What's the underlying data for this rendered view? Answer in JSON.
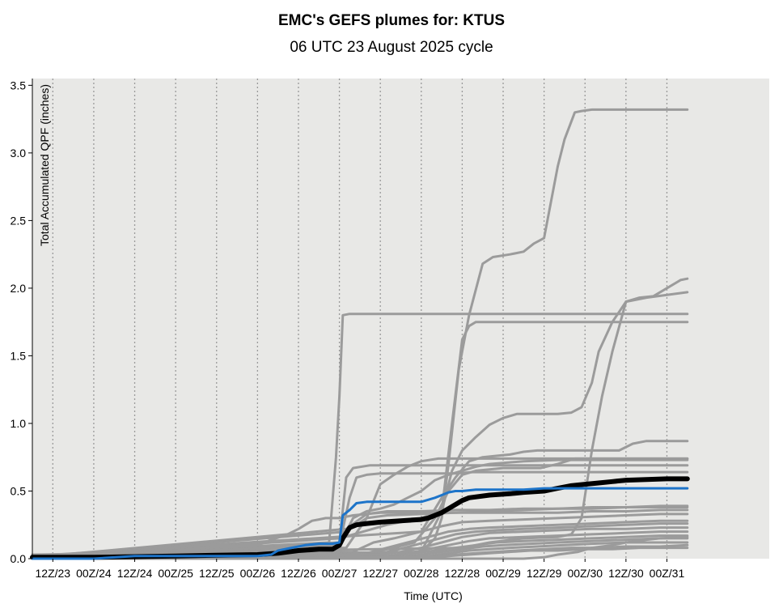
{
  "chart_data": {
    "type": "line",
    "title": "EMC's GEFS plumes for: KTUS",
    "subtitle": "06 UTC 23 August 2025 cycle",
    "xlabel": "Time (UTC)",
    "ylabel": "Total Accumulated QPF (inches)",
    "xlim": [
      6,
      222
    ],
    "ylim": [
      0,
      3.55
    ],
    "x_unit": "hours after 00 UTC 23 August 2025",
    "x_ticks": [
      {
        "value": 12,
        "label": "12Z/23"
      },
      {
        "value": 24,
        "label": "00Z/24"
      },
      {
        "value": 36,
        "label": "12Z/24"
      },
      {
        "value": 48,
        "label": "00Z/25"
      },
      {
        "value": 60,
        "label": "12Z/25"
      },
      {
        "value": 72,
        "label": "00Z/26"
      },
      {
        "value": 84,
        "label": "12Z/26"
      },
      {
        "value": 96,
        "label": "00Z/27"
      },
      {
        "value": 108,
        "label": "12Z/27"
      },
      {
        "value": 120,
        "label": "00Z/28"
      },
      {
        "value": 132,
        "label": "12Z/28"
      },
      {
        "value": 144,
        "label": "00Z/29"
      },
      {
        "value": 156,
        "label": "12Z/29"
      },
      {
        "value": 168,
        "label": "00Z/30"
      },
      {
        "value": 180,
        "label": "12Z/30"
      },
      {
        "value": 192,
        "label": "00Z/31"
      }
    ],
    "y_ticks": [
      {
        "value": 0.0,
        "label": "0.0"
      },
      {
        "value": 0.5,
        "label": "0.5"
      },
      {
        "value": 1.0,
        "label": "1.0"
      },
      {
        "value": 1.5,
        "label": "1.5"
      },
      {
        "value": 2.0,
        "label": "2.0"
      },
      {
        "value": 2.5,
        "label": "2.5"
      },
      {
        "value": 3.0,
        "label": "3.0"
      },
      {
        "value": 3.5,
        "label": "3.5"
      }
    ],
    "grid": true,
    "colors": {
      "plot_bg": "#e8e8e6",
      "grid": "#9a9a9a",
      "member": "#9b9b9b",
      "mean": "#000000",
      "control": "#1d74c9"
    },
    "members": [
      {
        "x": [
          6,
          93,
          95,
          96,
          97,
          99,
          198
        ],
        "y": [
          0.01,
          0.12,
          0.75,
          1.2,
          1.8,
          1.81,
          1.81
        ]
      },
      {
        "x": [
          6,
          120,
          124,
          126,
          128,
          131,
          134,
          138,
          141,
          146,
          150,
          153,
          156,
          160,
          162,
          165,
          167,
          170,
          198
        ],
        "y": [
          0.01,
          0.05,
          0.15,
          0.3,
          0.7,
          1.4,
          1.8,
          2.18,
          2.23,
          2.25,
          2.27,
          2.33,
          2.37,
          2.9,
          3.1,
          3.3,
          3.31,
          3.32,
          3.32
        ]
      },
      {
        "x": [
          6,
          120,
          126,
          129,
          132,
          134,
          136,
          140,
          150,
          160,
          170,
          198
        ],
        "y": [
          0.01,
          0.05,
          0.35,
          1.0,
          1.62,
          1.72,
          1.75,
          1.75,
          1.75,
          1.75,
          1.75,
          1.75
        ]
      },
      {
        "x": [
          6,
          132,
          140,
          150,
          160,
          164,
          167,
          170,
          173,
          176,
          180,
          184,
          188,
          192,
          196,
          198
        ],
        "y": [
          0.03,
          0.08,
          0.12,
          0.15,
          0.16,
          0.18,
          0.3,
          0.8,
          1.2,
          1.53,
          1.9,
          1.93,
          1.94,
          2.0,
          2.06,
          2.07
        ]
      },
      {
        "x": [
          6,
          96,
          110,
          120,
          126,
          129,
          132,
          136,
          140,
          144,
          148,
          154,
          160,
          164,
          167,
          170,
          172,
          176,
          180,
          186,
          198
        ],
        "y": [
          0.01,
          0.15,
          0.25,
          0.3,
          0.35,
          0.65,
          0.8,
          0.9,
          0.99,
          1.04,
          1.07,
          1.07,
          1.07,
          1.08,
          1.12,
          1.3,
          1.53,
          1.75,
          1.9,
          1.93,
          1.97
        ]
      },
      {
        "x": [
          6,
          120,
          126,
          130,
          134,
          138,
          142,
          146,
          150,
          154,
          158,
          162,
          166,
          170,
          174,
          178,
          182,
          186,
          190,
          198
        ],
        "y": [
          0.02,
          0.2,
          0.45,
          0.6,
          0.72,
          0.75,
          0.76,
          0.77,
          0.79,
          0.8,
          0.8,
          0.8,
          0.8,
          0.8,
          0.8,
          0.8,
          0.85,
          0.87,
          0.87,
          0.87
        ]
      },
      {
        "x": [
          6,
          96,
          98,
          100,
          105,
          110,
          120,
          130,
          140,
          150,
          160,
          170,
          180,
          190,
          198
        ],
        "y": [
          0.01,
          0.12,
          0.6,
          0.67,
          0.69,
          0.69,
          0.69,
          0.69,
          0.69,
          0.69,
          0.69,
          0.69,
          0.69,
          0.69,
          0.69
        ]
      },
      {
        "x": [
          6,
          96,
          99,
          101,
          104,
          108,
          118,
          125,
          130,
          135,
          140,
          150,
          160,
          170,
          180,
          190,
          198
        ],
        "y": [
          0.01,
          0.1,
          0.45,
          0.6,
          0.62,
          0.63,
          0.63,
          0.63,
          0.63,
          0.64,
          0.64,
          0.64,
          0.64,
          0.64,
          0.64,
          0.64,
          0.64
        ]
      },
      {
        "x": [
          6,
          96,
          100,
          104,
          108,
          112,
          116,
          120,
          124,
          128,
          132,
          136,
          140,
          150,
          160,
          170,
          180,
          190,
          198
        ],
        "y": [
          0.01,
          0.1,
          0.3,
          0.35,
          0.37,
          0.4,
          0.45,
          0.5,
          0.58,
          0.62,
          0.65,
          0.68,
          0.7,
          0.72,
          0.73,
          0.73,
          0.73,
          0.73,
          0.73
        ]
      },
      {
        "x": [
          6,
          98,
          104,
          108,
          112,
          116,
          120,
          125,
          130,
          140,
          150,
          160,
          170,
          180,
          190,
          198
        ],
        "y": [
          0.01,
          0.08,
          0.3,
          0.55,
          0.62,
          0.68,
          0.72,
          0.74,
          0.74,
          0.74,
          0.74,
          0.74,
          0.74,
          0.74,
          0.74,
          0.74
        ]
      },
      {
        "x": [
          6,
          100,
          106,
          112,
          118,
          124,
          128,
          132,
          136,
          140,
          144,
          150,
          155,
          160,
          165,
          170,
          180,
          190,
          198
        ],
        "y": [
          0.01,
          0.02,
          0.05,
          0.08,
          0.12,
          0.3,
          0.5,
          0.62,
          0.65,
          0.66,
          0.67,
          0.67,
          0.67,
          0.7,
          0.74,
          0.74,
          0.74,
          0.74,
          0.74
        ]
      },
      {
        "x": [
          6,
          33,
          36,
          48,
          60,
          72,
          76,
          80,
          84,
          86,
          88,
          90,
          92,
          96,
          98,
          100,
          104,
          108,
          112,
          120,
          130,
          140,
          150,
          160,
          170,
          180,
          190,
          198
        ],
        "y": [
          0.01,
          0.01,
          0.05,
          0.06,
          0.09,
          0.1,
          0.14,
          0.17,
          0.22,
          0.25,
          0.28,
          0.29,
          0.3,
          0.3,
          0.31,
          0.32,
          0.33,
          0.34,
          0.34,
          0.34,
          0.34,
          0.34,
          0.34,
          0.34,
          0.35,
          0.35,
          0.36,
          0.36
        ]
      },
      {
        "x": [
          6,
          98,
          104,
          110,
          120,
          130,
          140,
          150,
          160,
          170,
          180,
          190,
          198
        ],
        "y": [
          0.01,
          0.2,
          0.3,
          0.32,
          0.33,
          0.34,
          0.35,
          0.36,
          0.37,
          0.38,
          0.38,
          0.39,
          0.39
        ]
      },
      {
        "x": [
          6,
          98,
          104,
          110,
          120,
          130,
          140,
          150,
          160,
          170,
          180,
          190,
          198
        ],
        "y": [
          0.01,
          0.22,
          0.33,
          0.35,
          0.35,
          0.36,
          0.36,
          0.37,
          0.37,
          0.37,
          0.38,
          0.38,
          0.38
        ]
      },
      {
        "x": [
          6,
          100,
          106,
          112,
          120,
          126,
          132,
          140,
          150,
          160,
          170,
          180,
          190,
          198
        ],
        "y": [
          0.01,
          0.05,
          0.12,
          0.15,
          0.2,
          0.24,
          0.27,
          0.28,
          0.29,
          0.3,
          0.31,
          0.32,
          0.33,
          0.33
        ]
      },
      {
        "x": [
          6,
          104,
          110,
          116,
          122,
          128,
          134,
          140,
          150,
          160,
          170,
          180,
          190,
          198
        ],
        "y": [
          0.01,
          0.04,
          0.08,
          0.12,
          0.16,
          0.2,
          0.22,
          0.23,
          0.24,
          0.25,
          0.26,
          0.27,
          0.28,
          0.28
        ]
      },
      {
        "x": [
          6,
          106,
          112,
          118,
          124,
          130,
          136,
          142,
          150,
          160,
          170,
          180,
          190,
          198
        ],
        "y": [
          0.01,
          0.03,
          0.06,
          0.1,
          0.14,
          0.18,
          0.2,
          0.21,
          0.22,
          0.23,
          0.24,
          0.25,
          0.26,
          0.26
        ]
      },
      {
        "x": [
          6,
          108,
          114,
          120,
          126,
          132,
          140,
          150,
          160,
          170,
          180,
          190,
          198
        ],
        "y": [
          0.01,
          0.03,
          0.05,
          0.08,
          0.12,
          0.16,
          0.19,
          0.2,
          0.21,
          0.22,
          0.22,
          0.23,
          0.23
        ]
      },
      {
        "x": [
          6,
          110,
          116,
          122,
          128,
          134,
          140,
          150,
          160,
          170,
          180,
          190,
          198
        ],
        "y": [
          0.01,
          0.02,
          0.04,
          0.07,
          0.1,
          0.13,
          0.15,
          0.16,
          0.17,
          0.18,
          0.19,
          0.2,
          0.2
        ]
      },
      {
        "x": [
          6,
          112,
          118,
          124,
          130,
          136,
          142,
          150,
          160,
          170,
          180,
          190,
          198
        ],
        "y": [
          0.01,
          0.02,
          0.04,
          0.06,
          0.08,
          0.1,
          0.12,
          0.13,
          0.14,
          0.15,
          0.16,
          0.17,
          0.17
        ]
      },
      {
        "x": [
          6,
          114,
          120,
          126,
          132,
          138,
          144,
          152,
          160,
          170,
          180,
          190,
          198
        ],
        "y": [
          0.0,
          0.01,
          0.03,
          0.05,
          0.07,
          0.09,
          0.1,
          0.11,
          0.12,
          0.13,
          0.14,
          0.15,
          0.15
        ]
      },
      {
        "x": [
          6,
          116,
          122,
          128,
          134,
          140,
          146,
          154,
          162,
          170,
          180,
          190,
          198
        ],
        "y": [
          0.0,
          0.01,
          0.02,
          0.04,
          0.06,
          0.07,
          0.08,
          0.09,
          0.1,
          0.11,
          0.12,
          0.12,
          0.12
        ]
      },
      {
        "x": [
          6,
          118,
          124,
          130,
          136,
          142,
          148,
          156,
          164,
          172,
          180,
          190,
          198
        ],
        "y": [
          0.0,
          0.01,
          0.02,
          0.03,
          0.04,
          0.05,
          0.06,
          0.07,
          0.08,
          0.08,
          0.09,
          0.09,
          0.1
        ]
      },
      {
        "x": [
          6,
          150,
          156,
          160,
          166,
          170,
          176,
          180,
          186,
          190,
          198
        ],
        "y": [
          0.0,
          0.0,
          0.01,
          0.03,
          0.05,
          0.08,
          0.1,
          0.12,
          0.14,
          0.15,
          0.16
        ]
      },
      {
        "x": [
          6,
          122,
          128,
          134,
          140,
          146,
          152,
          160,
          168,
          176,
          184,
          192,
          198
        ],
        "y": [
          0.0,
          0.01,
          0.02,
          0.03,
          0.04,
          0.05,
          0.06,
          0.06,
          0.07,
          0.07,
          0.08,
          0.08,
          0.08
        ]
      }
    ],
    "mean": {
      "x": [
        6,
        24,
        36,
        48,
        60,
        72,
        78,
        84,
        90,
        94,
        96,
        97,
        99,
        101,
        104,
        108,
        114,
        120,
        122,
        126,
        130,
        132,
        134,
        140,
        146,
        150,
        156,
        160,
        164,
        168,
        172,
        176,
        180,
        186,
        192,
        198
      ],
      "y": [
        0.01,
        0.01,
        0.015,
        0.02,
        0.025,
        0.03,
        0.04,
        0.06,
        0.07,
        0.07,
        0.1,
        0.15,
        0.23,
        0.25,
        0.26,
        0.27,
        0.28,
        0.29,
        0.3,
        0.34,
        0.4,
        0.43,
        0.45,
        0.47,
        0.48,
        0.49,
        0.5,
        0.52,
        0.54,
        0.55,
        0.56,
        0.57,
        0.58,
        0.585,
        0.59,
        0.59
      ]
    },
    "control": {
      "x": [
        6,
        24,
        36,
        48,
        60,
        72,
        76,
        78,
        82,
        86,
        90,
        94,
        96,
        97,
        99,
        101,
        104,
        108,
        114,
        120,
        124,
        126,
        128,
        130,
        132,
        136,
        140,
        144,
        150,
        156,
        160,
        164,
        168,
        174,
        180,
        186,
        192,
        198
      ],
      "y": [
        0.0,
        0.0,
        0.02,
        0.02,
        0.02,
        0.02,
        0.03,
        0.06,
        0.08,
        0.1,
        0.11,
        0.11,
        0.12,
        0.32,
        0.36,
        0.41,
        0.42,
        0.42,
        0.42,
        0.42,
        0.45,
        0.47,
        0.49,
        0.5,
        0.5,
        0.51,
        0.51,
        0.51,
        0.51,
        0.52,
        0.52,
        0.52,
        0.52,
        0.52,
        0.52,
        0.52,
        0.52,
        0.52
      ]
    }
  }
}
